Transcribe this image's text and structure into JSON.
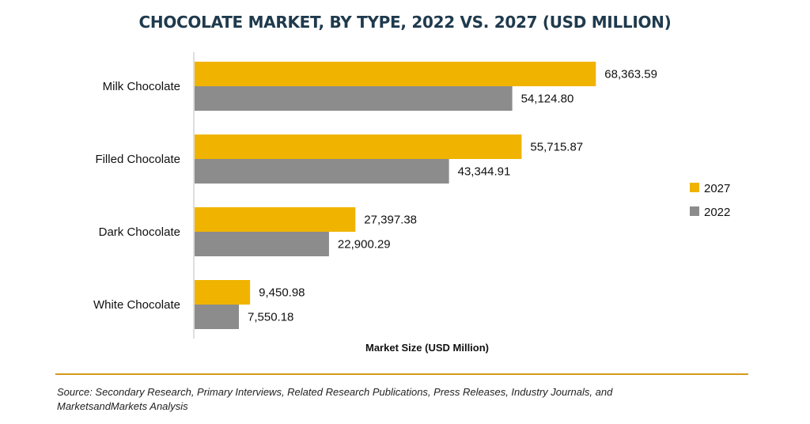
{
  "chart_data": {
    "type": "bar",
    "orientation": "horizontal",
    "title": "CHOCOLATE MARKET, BY TYPE, 2022 VS. 2027 (USD MILLION)",
    "xlabel": "Market Size (USD Million)",
    "ylabel": "",
    "categories": [
      "Milk Chocolate",
      "Filled Chocolate",
      "Dark Chocolate",
      "White Chocolate"
    ],
    "series": [
      {
        "name": "2027",
        "color": "#f0b400",
        "values": [
          68363.59,
          55715.87,
          27397.38,
          9450.98
        ],
        "labels": [
          "68,363.59",
          "55,715.87",
          "27,397.38",
          "9,450.98"
        ]
      },
      {
        "name": "2022",
        "color": "#8c8c8c",
        "values": [
          54124.8,
          43344.91,
          22900.29,
          7550.18
        ],
        "labels": [
          "54,124.80",
          "43,344.91",
          "22,900.29",
          "7,550.18"
        ]
      }
    ],
    "xlim": [
      0,
      69000
    ],
    "grid": false,
    "legend_position": "right"
  },
  "source_note": "Source: Secondary Research, Primary Interviews, Related Research Publications, Press Releases, Industry Journals, and MarketsandMarkets Analysis",
  "colors": {
    "rule": "#d49a1e",
    "title": "#1f3a4d"
  }
}
